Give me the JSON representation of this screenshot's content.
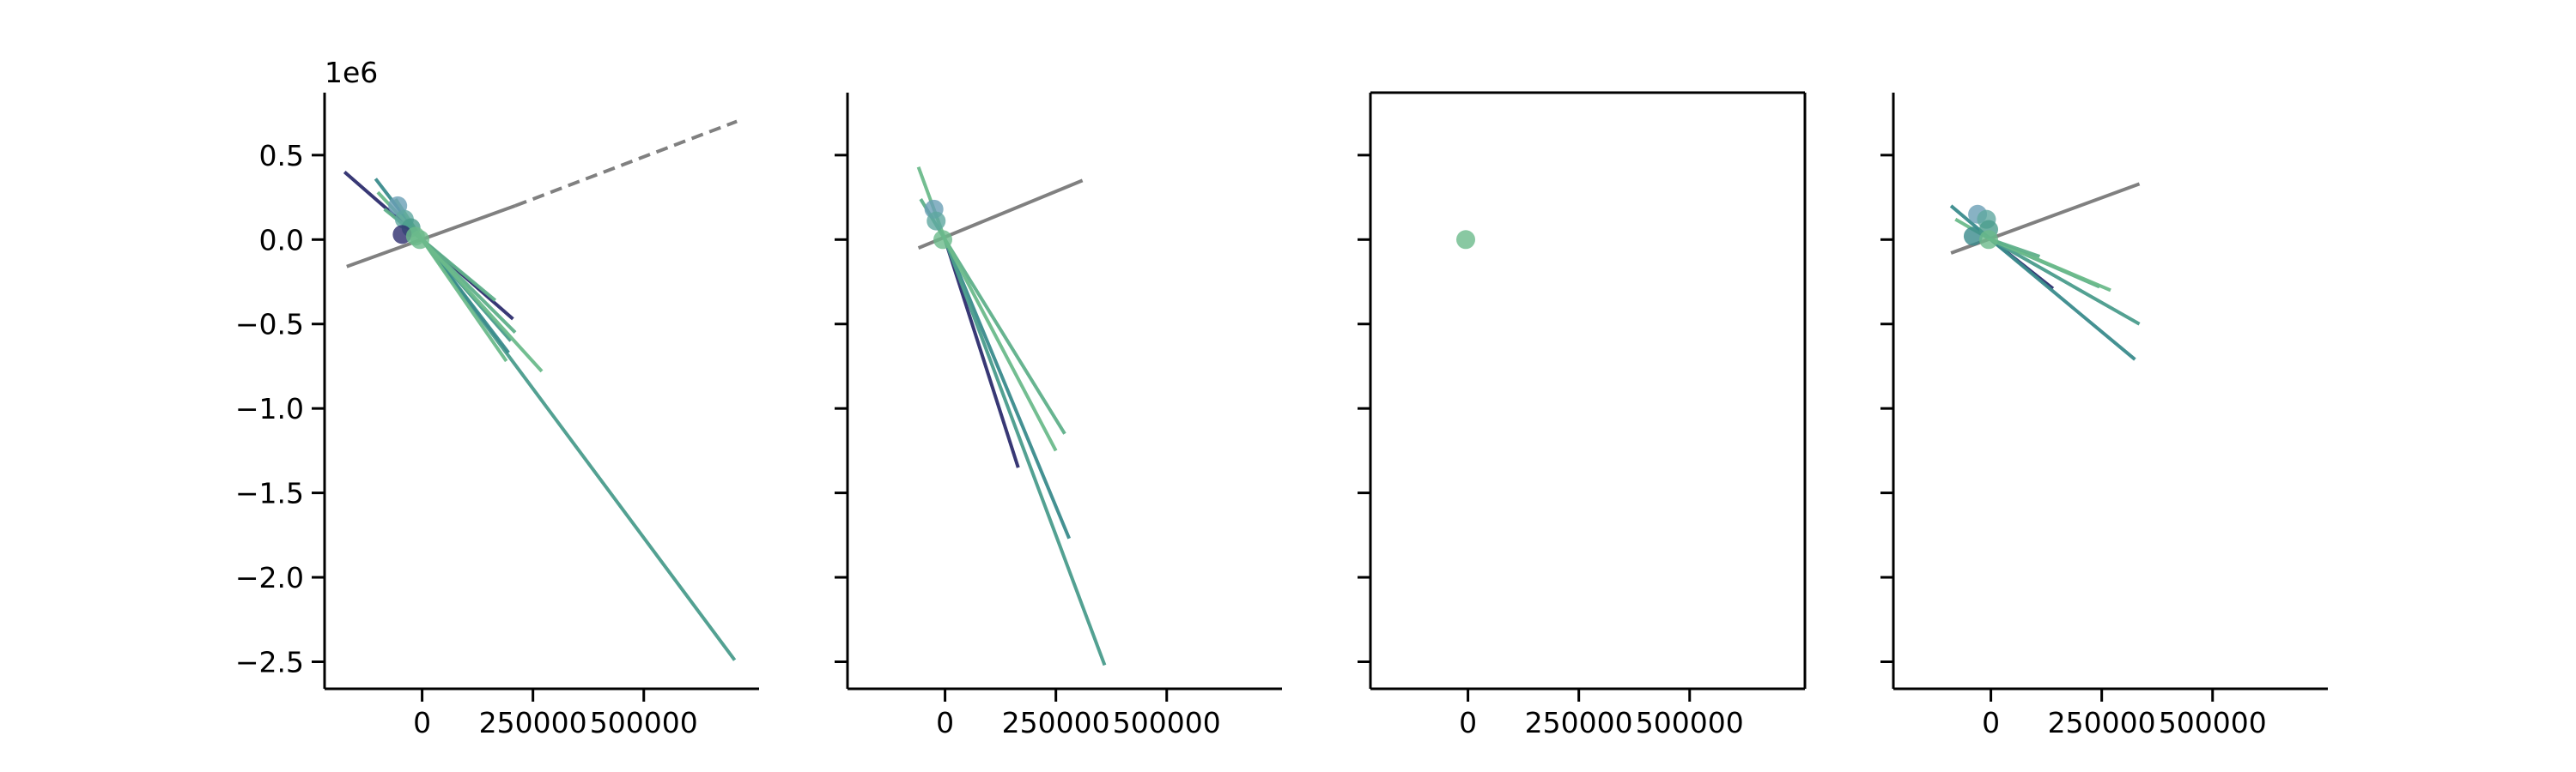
{
  "figure": {
    "y_offset_text": "1e6"
  },
  "chart_data": [
    {
      "type": "line",
      "panel": 1,
      "xlim": [
        -220000,
        760000
      ],
      "ylim": [
        -2.66,
        0.87
      ],
      "y_unit_multiplier": "1e6",
      "x_ticks": [
        0,
        250000,
        500000
      ],
      "x_tick_labels": [
        "0",
        "250000",
        "500000"
      ],
      "y_ticks": [
        0.5,
        0.0,
        -0.5,
        -1.0,
        -1.5,
        -2.0,
        -2.5
      ],
      "y_tick_labels": [
        "0.5",
        "0.0",
        "−0.5",
        "−1.0",
        "−1.5",
        "−2.0",
        "−2.5"
      ],
      "show_y_tick_labels": true,
      "spines": "left-bottom",
      "reference_lines": [
        {
          "x": [
            -170000,
            210000
          ],
          "y": [
            -0.16,
            0.2
          ],
          "color": "#808080",
          "style": "solid"
        },
        {
          "x": [
            210000,
            710000
          ],
          "y": [
            0.2,
            0.7
          ],
          "color": "#808080",
          "style": "dashed"
        }
      ],
      "segments": [
        {
          "x": [
            -175000,
            0
          ],
          "y": [
            0.4,
            0.0
          ],
          "color": "#2d2d6e"
        },
        {
          "x": [
            0,
            205000
          ],
          "y": [
            0.0,
            -0.47
          ],
          "color": "#2d2d6e"
        },
        {
          "x": [
            -105000,
            0
          ],
          "y": [
            0.36,
            0.0
          ],
          "color": "#3a8b8c"
        },
        {
          "x": [
            0,
            705000
          ],
          "y": [
            0.0,
            -2.49
          ],
          "color": "#4a9c8c"
        },
        {
          "x": [
            0,
            195000
          ],
          "y": [
            0.0,
            -0.67
          ],
          "color": "#3a8b8c"
        },
        {
          "x": [
            0,
            200000
          ],
          "y": [
            0.0,
            -0.6
          ],
          "color": "#4a9c8c"
        },
        {
          "x": [
            0,
            210000
          ],
          "y": [
            0.0,
            -0.55
          ],
          "color": "#5fb08a"
        },
        {
          "x": [
            0,
            165000
          ],
          "y": [
            0.0,
            -0.36
          ],
          "color": "#5fb08a"
        },
        {
          "x": [
            0,
            270000
          ],
          "y": [
            0.0,
            -0.78
          ],
          "color": "#6cba8b"
        },
        {
          "x": [
            0,
            190000
          ],
          "y": [
            0.0,
            -0.72
          ],
          "color": "#6cba8b"
        },
        {
          "x": [
            -100000,
            0
          ],
          "y": [
            0.28,
            0.0
          ],
          "color": "#6cba8b"
        },
        {
          "x": [
            -85000,
            0
          ],
          "y": [
            0.18,
            0.0
          ],
          "color": "#5fb08a"
        },
        {
          "x": [
            -60000,
            0
          ],
          "y": [
            0.24,
            0.0
          ],
          "color": "#6cba8b"
        }
      ],
      "points": [
        {
          "x": -55000,
          "y": 0.2,
          "color": "#6a9fb5"
        },
        {
          "x": -40000,
          "y": 0.12,
          "color": "#5fa7a0"
        },
        {
          "x": -25000,
          "y": 0.07,
          "color": "#4a9c8c"
        },
        {
          "x": -45000,
          "y": 0.03,
          "color": "#2d2d6e"
        },
        {
          "x": -15000,
          "y": 0.02,
          "color": "#6cba8b"
        },
        {
          "x": -5000,
          "y": 0.0,
          "color": "#6cba8b"
        }
      ]
    },
    {
      "type": "line",
      "panel": 2,
      "xlim": [
        -220000,
        760000
      ],
      "ylim": [
        -2.66,
        0.87
      ],
      "x_ticks": [
        0,
        250000,
        500000
      ],
      "x_tick_labels": [
        "0",
        "250000",
        "500000"
      ],
      "y_ticks": [
        0.5,
        0.0,
        -0.5,
        -1.0,
        -1.5,
        -2.0,
        -2.5
      ],
      "show_y_tick_labels": false,
      "spines": "left-bottom",
      "reference_lines": [
        {
          "x": [
            -60000,
            310000
          ],
          "y": [
            -0.05,
            0.35
          ],
          "color": "#808080",
          "style": "solid"
        }
      ],
      "segments": [
        {
          "x": [
            0,
            165000
          ],
          "y": [
            0.0,
            -1.35
          ],
          "color": "#2d2d6e"
        },
        {
          "x": [
            0,
            280000
          ],
          "y": [
            0.0,
            -1.77
          ],
          "color": "#3a8b8c"
        },
        {
          "x": [
            0,
            360000
          ],
          "y": [
            0.0,
            -2.52
          ],
          "color": "#4a9c8c"
        },
        {
          "x": [
            0,
            270000
          ],
          "y": [
            0.0,
            -1.15
          ],
          "color": "#5fb08a"
        },
        {
          "x": [
            0,
            250000
          ],
          "y": [
            0.0,
            -1.25
          ],
          "color": "#6cba8b"
        },
        {
          "x": [
            -60000,
            0
          ],
          "y": [
            0.43,
            0.0
          ],
          "color": "#6cba8b"
        },
        {
          "x": [
            -55000,
            0
          ],
          "y": [
            0.24,
            0.0
          ],
          "color": "#5fb08a"
        }
      ],
      "points": [
        {
          "x": -25000,
          "y": 0.18,
          "color": "#6a9fb5"
        },
        {
          "x": -20000,
          "y": 0.11,
          "color": "#5fa7a0"
        },
        {
          "x": -5000,
          "y": 0.0,
          "color": "#6cba8b"
        }
      ]
    },
    {
      "type": "scatter",
      "panel": 3,
      "xlim": [
        -220000,
        760000
      ],
      "ylim": [
        -2.66,
        0.87
      ],
      "x_ticks": [
        0,
        250000,
        500000
      ],
      "x_tick_labels": [
        "0",
        "250000",
        "500000"
      ],
      "y_ticks": [
        0.5,
        0.0,
        -0.5,
        -1.0,
        -1.5,
        -2.0,
        -2.5
      ],
      "show_y_tick_labels": false,
      "spines": "box",
      "reference_lines": [],
      "segments": [],
      "points": [
        {
          "x": -5000,
          "y": 0.0,
          "color": "#6cba8b"
        }
      ]
    },
    {
      "type": "line",
      "panel": 4,
      "xlim": [
        -220000,
        760000
      ],
      "ylim": [
        -2.66,
        0.87
      ],
      "x_ticks": [
        0,
        250000,
        500000
      ],
      "x_tick_labels": [
        "0",
        "250000",
        "500000"
      ],
      "y_ticks": [
        0.5,
        0.0,
        -0.5,
        -1.0,
        -1.5,
        -2.0,
        -2.5
      ],
      "show_y_tick_labels": false,
      "spines": "left-bottom",
      "reference_lines": [
        {
          "x": [
            -90000,
            335000
          ],
          "y": [
            -0.08,
            0.33
          ],
          "color": "#808080",
          "style": "solid"
        }
      ],
      "segments": [
        {
          "x": [
            0,
            140000
          ],
          "y": [
            0.0,
            -0.29
          ],
          "color": "#2d2d6e"
        },
        {
          "x": [
            0,
            325000
          ],
          "y": [
            0.0,
            -0.71
          ],
          "color": "#3a8b8c"
        },
        {
          "x": [
            0,
            335000
          ],
          "y": [
            0.0,
            -0.5
          ],
          "color": "#4a9c8c"
        },
        {
          "x": [
            0,
            245000
          ],
          "y": [
            0.0,
            -0.28
          ],
          "color": "#5fb08a"
        },
        {
          "x": [
            0,
            270000
          ],
          "y": [
            0.0,
            -0.3
          ],
          "color": "#6cba8b"
        },
        {
          "x": [
            -90000,
            0
          ],
          "y": [
            0.2,
            0.0
          ],
          "color": "#3a8b8c"
        },
        {
          "x": [
            -80000,
            0
          ],
          "y": [
            0.12,
            0.0
          ],
          "color": "#6cba8b"
        },
        {
          "x": [
            0,
            110000
          ],
          "y": [
            0.0,
            -0.1
          ],
          "color": "#5fb08a"
        }
      ],
      "points": [
        {
          "x": -30000,
          "y": 0.15,
          "color": "#6a9fb5"
        },
        {
          "x": -10000,
          "y": 0.12,
          "color": "#5fa7a0"
        },
        {
          "x": -40000,
          "y": 0.02,
          "color": "#3a8b8c"
        },
        {
          "x": -5000,
          "y": 0.06,
          "color": "#4a9c8c"
        },
        {
          "x": -5000,
          "y": 0.0,
          "color": "#6cba8b"
        }
      ]
    }
  ]
}
